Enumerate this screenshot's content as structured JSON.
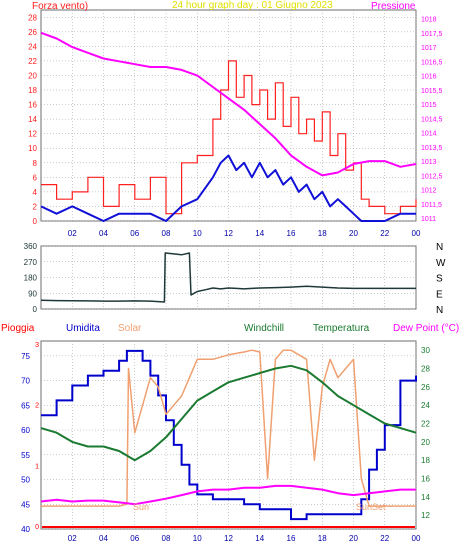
{
  "colors": {
    "frame": "#6e6e6e",
    "plot_bg": "#ffffff",
    "grid": "#9a9a9a",
    "wind": "#ff2020",
    "gust_avg": "#1010d8",
    "pressure": "#ff00ff",
    "direction": "#203838",
    "rain": "#ff0000",
    "humidity": "#0000cc",
    "solar": "#f0a070",
    "windchill": "#1a7a30",
    "temperature": "#1a7a30",
    "dewpoint": "#ff00ff",
    "title": "#e0e000",
    "white": "#ffffff"
  },
  "chart_data": [
    {
      "type": "line",
      "title": "24 hour graph day : 01 Giugno 2023",
      "left_axis_label": "Forza vento)",
      "right_axis_label": "Pressione",
      "x_ticks": [
        "02",
        "04",
        "06",
        "08",
        "10",
        "12",
        "14",
        "16",
        "18",
        "20",
        "22",
        "00"
      ],
      "x_range": [
        0,
        24
      ],
      "y_left_ticks": [
        "0",
        "2",
        "4",
        "6",
        "8",
        "10",
        "12",
        "14",
        "16",
        "18",
        "20",
        "22",
        "24",
        "26",
        "28"
      ],
      "y_left_range": [
        0,
        29
      ],
      "y_right_ticks": [
        "1011",
        "1011,5",
        "1012",
        "1012,5",
        "1013",
        "1013,5",
        "1014",
        "1014,5",
        "1015",
        "1015,5",
        "1016",
        "1016,5",
        "1017",
        "1017,5",
        "1018"
      ],
      "y_right_range": [
        1010.9,
        1018.3
      ],
      "series": [
        {
          "key": "wind",
          "x": [
            0,
            1,
            2,
            3,
            4,
            5,
            6,
            7,
            8,
            9,
            10,
            11,
            11.5,
            12,
            12.5,
            13,
            13.5,
            14,
            14.5,
            15,
            15.5,
            16,
            16.5,
            17,
            17.5,
            18,
            18.5,
            19,
            19.5,
            20,
            20.5,
            21,
            22,
            23,
            24
          ],
          "y": [
            5,
            3,
            4,
            6,
            2,
            5,
            3,
            6,
            1,
            8,
            9,
            14,
            18,
            22,
            17,
            20,
            16,
            18,
            14,
            19,
            13,
            17,
            12,
            14,
            11,
            15,
            9,
            12,
            7,
            8,
            3,
            2,
            1,
            2,
            3
          ]
        },
        {
          "key": "gust_avg",
          "x": [
            0,
            1,
            2,
            3,
            4,
            5,
            6,
            7,
            8,
            9,
            10,
            11,
            11.5,
            12,
            12.5,
            13,
            13.5,
            14,
            14.5,
            15,
            15.5,
            16,
            16.5,
            17,
            17.5,
            18,
            18.5,
            19,
            19.5,
            20,
            20.5,
            21,
            22,
            23,
            24
          ],
          "y": [
            2,
            1,
            2,
            1,
            0,
            1,
            1,
            1,
            0,
            2,
            3,
            6,
            8,
            9,
            7,
            8,
            6,
            8,
            6,
            7,
            5,
            6,
            4,
            5,
            3,
            4,
            2,
            3,
            2,
            1,
            0,
            0,
            0,
            1,
            1
          ]
        },
        {
          "key": "pressure",
          "x": [
            0,
            1,
            2,
            3,
            4,
            5,
            6,
            7,
            8,
            9,
            10,
            11,
            12,
            13,
            14,
            15,
            16,
            17,
            18,
            19,
            20,
            21,
            22,
            23,
            24
          ],
          "y": [
            1017.5,
            1017.3,
            1017.0,
            1016.8,
            1016.6,
            1016.5,
            1016.4,
            1016.3,
            1016.3,
            1016.2,
            1016.0,
            1015.6,
            1015.2,
            1014.8,
            1014.3,
            1013.8,
            1013.2,
            1012.8,
            1012.5,
            1012.6,
            1012.9,
            1013.0,
            1013.0,
            1012.8,
            1012.9
          ]
        }
      ]
    },
    {
      "type": "line",
      "title": "",
      "x_range": [
        0,
        24
      ],
      "y_left_ticks": [
        "0",
        "90",
        "180",
        "270",
        "360"
      ],
      "y_left_range": [
        0,
        360
      ],
      "y_right_ticks": [
        "N",
        "W",
        "S",
        "E",
        "N"
      ],
      "series": [
        {
          "key": "direction",
          "x": [
            0,
            1,
            2,
            3,
            4,
            5,
            6,
            7,
            7.9,
            7.95,
            8.5,
            9,
            9.5,
            9.6,
            9.8,
            10,
            10.5,
            11,
            11.5,
            12,
            12.5,
            13,
            13.5,
            14,
            15,
            16,
            17,
            18,
            19,
            20,
            21,
            22,
            23,
            24
          ],
          "y": [
            50,
            48,
            47,
            46,
            45,
            45,
            46,
            45,
            40,
            320,
            315,
            310,
            320,
            80,
            90,
            100,
            110,
            120,
            115,
            120,
            118,
            115,
            118,
            120,
            122,
            125,
            130,
            125,
            120,
            118,
            118,
            118,
            118,
            118
          ]
        }
      ]
    },
    {
      "type": "line",
      "title": "",
      "legend": [
        "Pioggia",
        "Umidita",
        "Solar",
        "Windchill",
        "Temperatura",
        "Dew Point (°C)"
      ],
      "x_ticks": [
        "02",
        "04",
        "06",
        "08",
        "10",
        "12",
        "14",
        "16",
        "18",
        "20",
        "22",
        "00"
      ],
      "x_range": [
        0,
        24
      ],
      "y_left_ticks": [
        "40",
        "45",
        "50",
        "55",
        "60",
        "65",
        "70",
        "75"
      ],
      "y_left_range": [
        40,
        78
      ],
      "y_rain_ticks": [
        "0",
        "1",
        "2",
        "3"
      ],
      "y_right_ticks": [
        "12",
        "14",
        "16",
        "18",
        "20",
        "22",
        "24",
        "26",
        "28",
        "30"
      ],
      "y_right_range": [
        10.5,
        31
      ],
      "annotations": [
        "Sun",
        "SunSet"
      ],
      "series": [
        {
          "key": "humidity",
          "x": [
            0,
            1,
            2,
            3,
            4,
            5,
            5.5,
            6,
            6.5,
            7,
            7.5,
            8,
            8.5,
            9,
            9.5,
            10,
            11,
            12,
            13,
            14,
            15,
            16,
            17,
            18,
            19,
            20,
            20.5,
            21,
            21.5,
            22,
            23,
            24
          ],
          "y": [
            63,
            66,
            69,
            71,
            72,
            74,
            76,
            76,
            74,
            71,
            67,
            62,
            57,
            53,
            49,
            47,
            46,
            46,
            45,
            44,
            44,
            42,
            43,
            43,
            43,
            43,
            46,
            52,
            56,
            61,
            70,
            71
          ]
        },
        {
          "key": "solar",
          "x": [
            0,
            5,
            5.5,
            5.6,
            6,
            6.5,
            7,
            7.5,
            8,
            8.5,
            9,
            9.5,
            10,
            11,
            12,
            13,
            13.5,
            14,
            14.5,
            15,
            15.5,
            16,
            16.5,
            17,
            17.5,
            18,
            18.5,
            19,
            19.5,
            20,
            20.5,
            21,
            24
          ],
          "y": [
            13,
            13,
            13.2,
            28,
            21,
            24,
            27,
            26,
            23,
            24,
            25,
            27,
            29,
            29,
            29.5,
            29.8,
            30,
            29.8,
            16,
            29,
            30,
            30,
            29.5,
            29,
            18,
            26,
            29,
            27,
            28,
            29,
            16,
            13,
            13
          ]
        },
        {
          "key": "temperature",
          "x": [
            0,
            1,
            2,
            3,
            4,
            5,
            6,
            7,
            8,
            9,
            10,
            11,
            12,
            13,
            14,
            15,
            16,
            17,
            18,
            19,
            20,
            21,
            22,
            23,
            24
          ],
          "y": [
            21.5,
            21,
            20,
            19.5,
            19.5,
            19,
            18,
            19,
            20.5,
            22.5,
            24.5,
            25.5,
            26.5,
            27,
            27.5,
            28,
            28.3,
            27.8,
            26.5,
            25,
            24,
            23,
            22,
            21.5,
            21
          ]
        },
        {
          "key": "dewpoint",
          "x": [
            0,
            1,
            2,
            3,
            4,
            5,
            6,
            7,
            8,
            9,
            10,
            11,
            12,
            13,
            14,
            15,
            16,
            17,
            18,
            19,
            20,
            21,
            22,
            23,
            24
          ],
          "y": [
            13.5,
            13.7,
            13.5,
            13.6,
            13.6,
            13.4,
            13.2,
            13.5,
            13.8,
            14.2,
            14.6,
            14.8,
            14.8,
            15,
            15,
            15.2,
            15.2,
            15,
            14.8,
            14.4,
            14.2,
            14.4,
            14.6,
            14.8,
            14.8
          ]
        }
      ]
    }
  ]
}
